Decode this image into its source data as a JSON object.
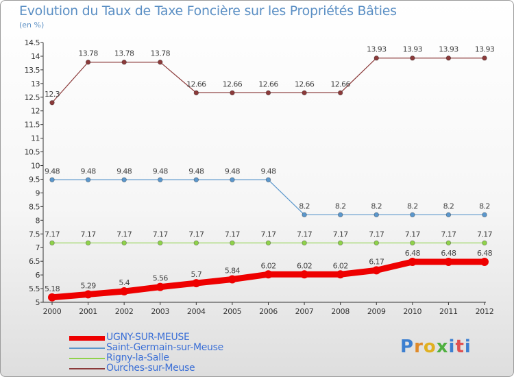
{
  "header": {
    "title": "Evolution du Taux de Taxe Foncière sur les Propriétés Bâties",
    "subtitle": "(en %)"
  },
  "logo": {
    "text": "Proxiti"
  },
  "chart_data": {
    "type": "line",
    "x": [
      "2000",
      "2001",
      "2002",
      "2003",
      "2004",
      "2005",
      "2006",
      "2007",
      "2008",
      "2009",
      "2010",
      "2011",
      "2012"
    ],
    "ylim": [
      5,
      14.5
    ],
    "yticks": [
      "5",
      "5.5",
      "6",
      "6.5",
      "7",
      "7.5",
      "8",
      "8.5",
      "9",
      "9.5",
      "10",
      "10.5",
      "11",
      "11.5",
      "12",
      "12.5",
      "13",
      "13.5",
      "14",
      "14.5"
    ],
    "grid": false,
    "legend_position": "bottom-left",
    "series": [
      {
        "name": "UGNY-SUR-MEUSE",
        "color": "#ee0000",
        "values": [
          5.18,
          5.29,
          5.4,
          5.56,
          5.7,
          5.84,
          6.02,
          6.02,
          6.02,
          6.17,
          6.48,
          6.48,
          6.48
        ],
        "labels": [
          "5.18",
          "5.29",
          "5.4",
          "5.56",
          "5.7",
          "5.84",
          "6.02",
          "6.02",
          "6.02",
          "6.17",
          "6.48",
          "6.48",
          "6.48"
        ]
      },
      {
        "name": "Saint-Germain-sur-Meuse",
        "color": "#5b97cc",
        "values": [
          9.48,
          9.48,
          9.48,
          9.48,
          9.48,
          9.48,
          9.48,
          8.2,
          8.2,
          8.2,
          8.2,
          8.2,
          8.2
        ],
        "labels": [
          "9.48",
          "9.48",
          "9.48",
          "9.48",
          "9.48",
          "9.48",
          "9.48",
          "8.2",
          "8.2",
          "8.2",
          "8.2",
          "8.2",
          "8.2"
        ]
      },
      {
        "name": "Rigny-la-Salle",
        "color": "#8fd24a",
        "values": [
          7.17,
          7.17,
          7.17,
          7.17,
          7.17,
          7.17,
          7.17,
          7.17,
          7.17,
          7.17,
          7.17,
          7.17,
          7.17
        ],
        "labels": [
          "7.17",
          "7.17",
          "7.17",
          "7.17",
          "7.17",
          "7.17",
          "7.17",
          "7.17",
          "7.17",
          "7.17",
          "7.17",
          "7.17",
          "7.17"
        ]
      },
      {
        "name": "Ourches-sur-Meuse",
        "color": "#8b3a3a",
        "values": [
          12.3,
          13.78,
          13.78,
          13.78,
          12.66,
          12.66,
          12.66,
          12.66,
          12.66,
          13.93,
          13.93,
          13.93,
          13.93
        ],
        "labels": [
          "12.3",
          "13.78",
          "13.78",
          "13.78",
          "12.66",
          "12.66",
          "12.66",
          "12.66",
          "12.66",
          "13.93",
          "13.93",
          "13.93",
          "13.93"
        ]
      }
    ]
  }
}
